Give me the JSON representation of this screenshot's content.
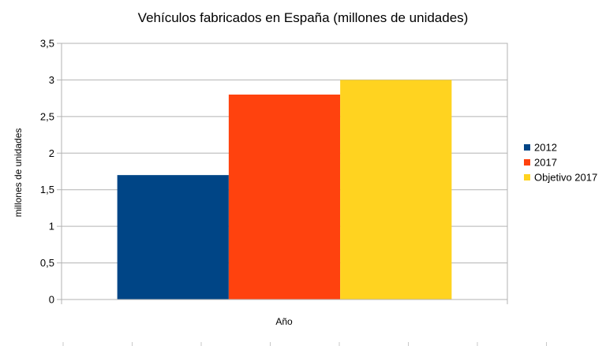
{
  "chart_data": {
    "type": "bar",
    "title": "Vehículos fabricados en España (millones de unidades)",
    "xlabel": "Año",
    "ylabel": "millones de unidades",
    "categories": [
      "Año"
    ],
    "series": [
      {
        "name": "2012",
        "values": [
          1.7
        ],
        "color": "#004586"
      },
      {
        "name": "2017",
        "values": [
          2.8
        ],
        "color": "#ff420e"
      },
      {
        "name": "Objetivo 2017",
        "values": [
          3.0
        ],
        "color": "#ffd320"
      }
    ],
    "ylim": [
      0,
      3.5
    ],
    "yticks": [
      "0",
      "0,5",
      "1",
      "1,5",
      "2",
      "2,5",
      "3",
      "3,5"
    ],
    "grid": true,
    "legend_position": "right"
  }
}
